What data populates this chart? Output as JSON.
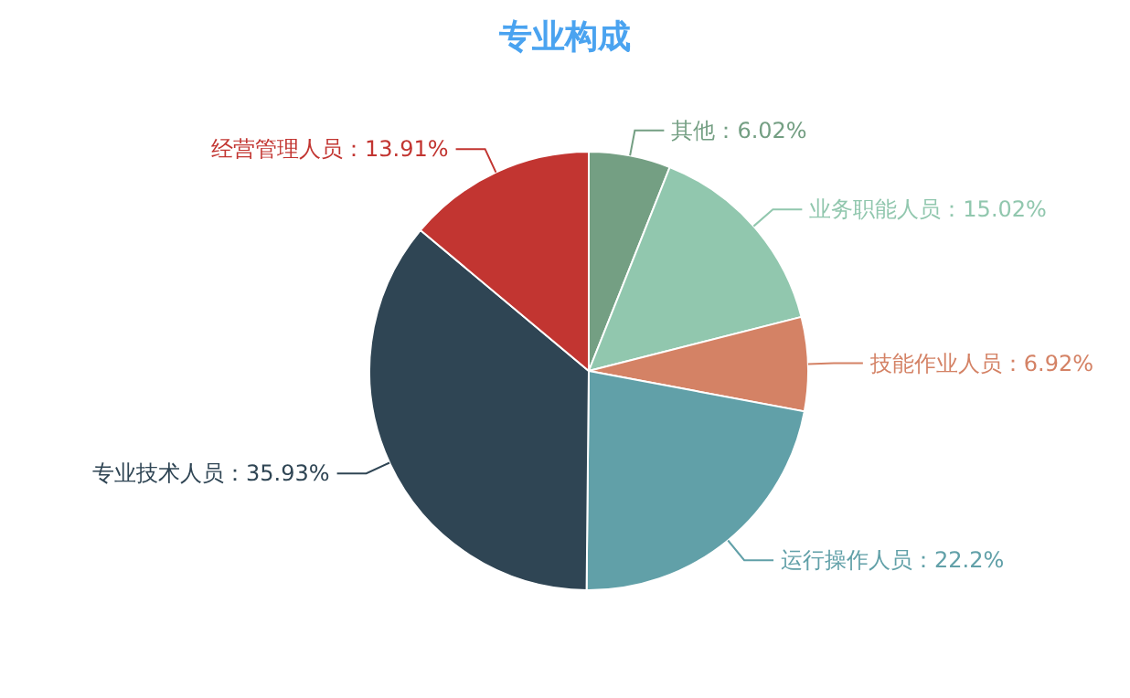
{
  "chart_data": {
    "type": "pie",
    "title": "专业构成",
    "categories": [
      "其他",
      "业务职能人员",
      "技能作业人员",
      "运行操作人员",
      "专业技术人员",
      "经营管理人员"
    ],
    "values": [
      6.02,
      15.02,
      6.92,
      22.2,
      35.93,
      13.91
    ],
    "colors": [
      "#749f83",
      "#91c7ae",
      "#d48265",
      "#61a0a8",
      "#2f4554",
      "#c23531"
    ],
    "value_labels": [
      "：6.02%",
      "：15.02%",
      "：6.92%",
      "：22.2%",
      "：35.93%",
      "：13.91%"
    ],
    "legend": false
  }
}
